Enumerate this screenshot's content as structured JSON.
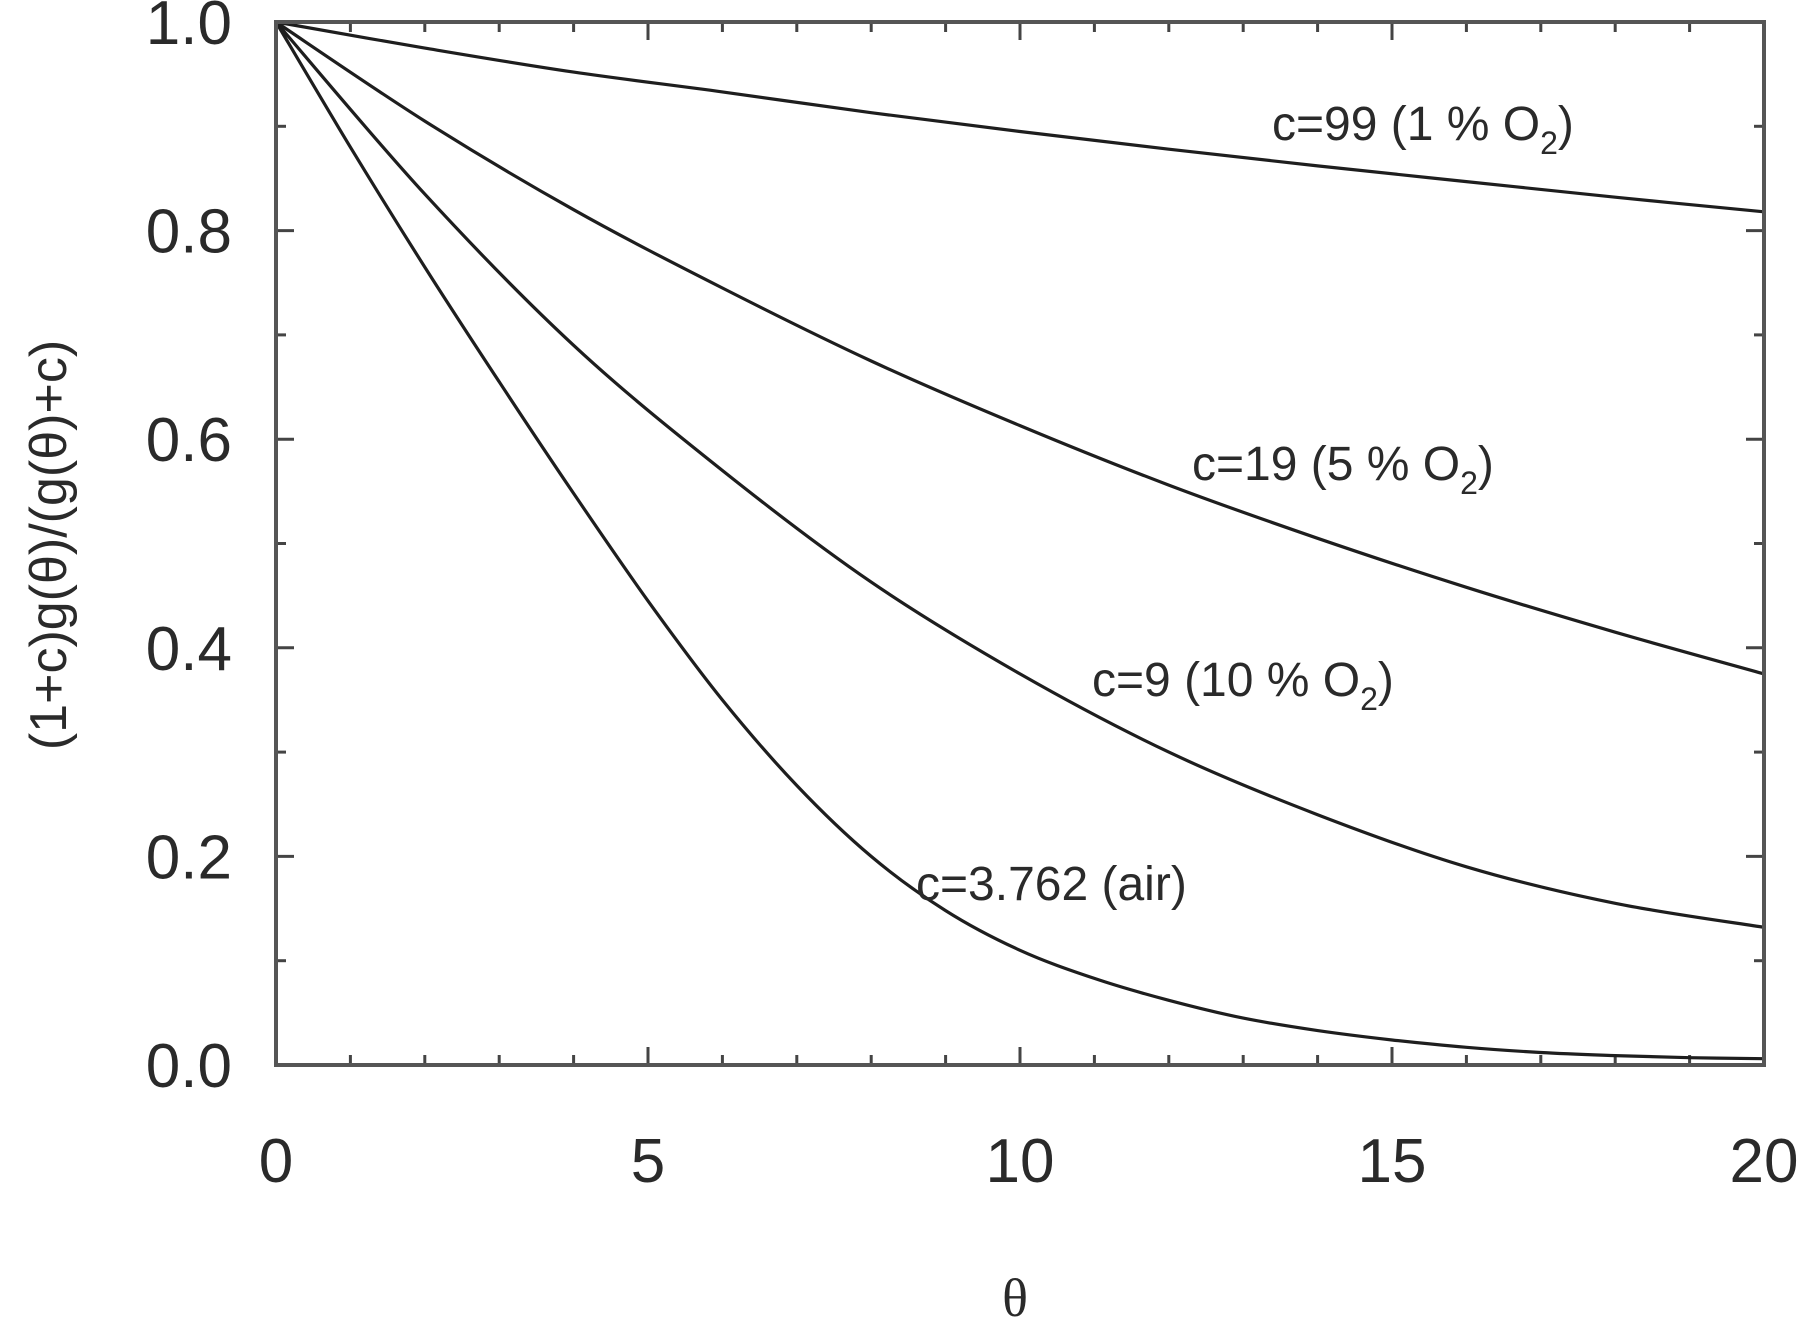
{
  "chart_data": {
    "type": "line",
    "xlabel": "θ",
    "ylabel": "(1+c)g(θ)/(g(θ)+c)",
    "xlim": [
      0,
      20
    ],
    "ylim": [
      0,
      1.0
    ],
    "x_ticks": [
      "0",
      "5",
      "10",
      "15",
      "20"
    ],
    "y_ticks": [
      "0.0",
      "0.2",
      "0.4",
      "0.6",
      "0.8",
      "1.0"
    ],
    "grid": false,
    "series": [
      {
        "name": "c=99 (1 % O2)",
        "label_main": "c=99 (1 % O",
        "label_sub": "2",
        "label_end": ")",
        "x": [
          0,
          2,
          4,
          6,
          8,
          10,
          12,
          14,
          16,
          18,
          20
        ],
        "y": [
          1.0,
          0.975,
          0.952,
          0.933,
          0.913,
          0.895,
          0.878,
          0.862,
          0.847,
          0.832,
          0.818
        ]
      },
      {
        "name": "c=19 (5 % O2)",
        "label_main": "c=19 (5 % O",
        "label_sub": "2",
        "label_end": ")",
        "x": [
          0,
          2,
          4,
          6,
          8,
          10,
          12,
          14,
          16,
          18,
          20
        ],
        "y": [
          1.0,
          0.905,
          0.82,
          0.745,
          0.675,
          0.613,
          0.556,
          0.505,
          0.458,
          0.415,
          0.375
        ]
      },
      {
        "name": "c=9 (10 % O2)",
        "label_main": "c=9 (10 % O",
        "label_sub": "2",
        "label_end": ")",
        "x": [
          0,
          2,
          4,
          6,
          8,
          10,
          12,
          14,
          16,
          18,
          20
        ],
        "y": [
          1.0,
          0.835,
          0.69,
          0.57,
          0.463,
          0.375,
          0.3,
          0.24,
          0.19,
          0.155,
          0.132
        ]
      },
      {
        "name": "c=3.762 (air)",
        "label_main": "c=3.762 (air)",
        "label_sub": "",
        "label_end": "",
        "x": [
          0,
          1,
          2,
          3,
          4,
          5,
          6,
          7,
          8,
          9,
          10,
          11,
          12,
          13,
          14,
          15,
          16,
          17,
          18,
          19,
          20
        ],
        "y": [
          1.0,
          0.88,
          0.765,
          0.655,
          0.548,
          0.445,
          0.35,
          0.268,
          0.2,
          0.148,
          0.11,
          0.083,
          0.062,
          0.045,
          0.033,
          0.024,
          0.017,
          0.012,
          0.009,
          0.007,
          0.006
        ]
      }
    ]
  }
}
